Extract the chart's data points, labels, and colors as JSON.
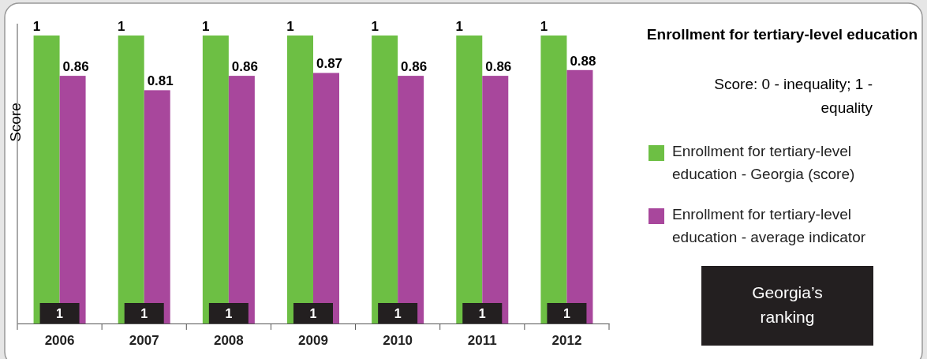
{
  "chart_data": {
    "type": "bar",
    "title": "Enrollment for tertiary-level education",
    "ylabel": "Score",
    "categories": [
      "2006",
      "2007",
      "2008",
      "2009",
      "2010",
      "2011",
      "2012"
    ],
    "series": [
      {
        "name": "Enrollment for tertiary-level education - Georgia (score)",
        "color": "#6dbf44",
        "values": [
          1,
          1,
          1,
          1,
          1,
          1,
          1
        ]
      },
      {
        "name": "Enrollment for tertiary-level education - average indicator",
        "color": "#a8479c",
        "values": [
          0.86,
          0.81,
          0.86,
          0.87,
          0.86,
          0.86,
          0.88
        ]
      }
    ],
    "ylim": [
      0,
      1
    ],
    "data_labels": true,
    "legend": "right",
    "tick_labels": "x",
    "annotations": [
      "Score: 0 - inequality; 1 - equality",
      "Georgia’s ranking",
      {
        "text": "1",
        "x": "2006"
      },
      {
        "text": "1",
        "x": "2007"
      },
      {
        "text": "1",
        "x": "2008"
      },
      {
        "text": "1",
        "x": "2009"
      },
      {
        "text": "1",
        "x": "2010"
      },
      {
        "text": "1",
        "x": "2011"
      },
      {
        "text": "1",
        "x": "2012"
      }
    ]
  }
}
